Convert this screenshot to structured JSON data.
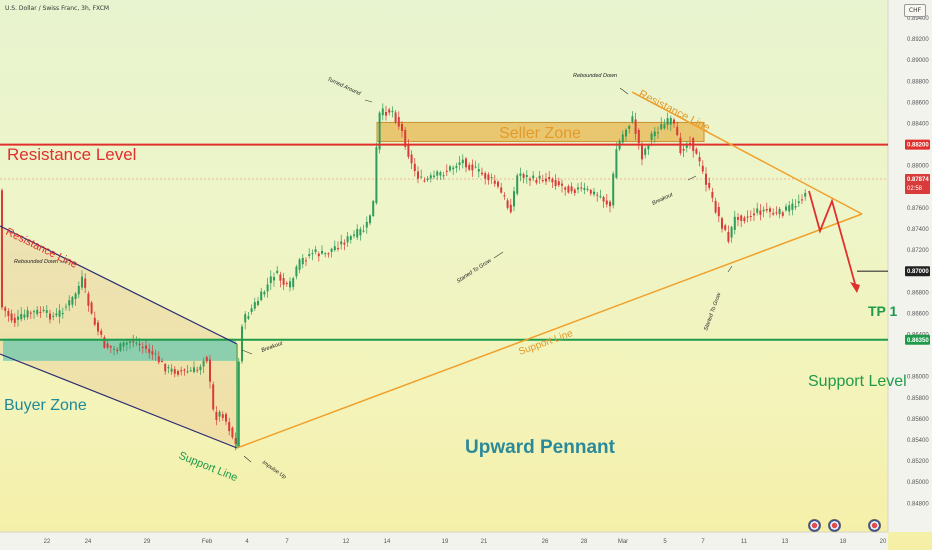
{
  "symbol_title": "U.S. Dollar / Swiss Franc, 3h, FXCM",
  "currency": "CHF",
  "colors": {
    "bull": "#2e9c5a",
    "bear": "#d93a3a",
    "resistance": "#e0302e",
    "support": "#1f9a4a",
    "pennant": "#f0a02a",
    "channel": "#2a2c70",
    "seller_zone": "#e8b44a",
    "buyer_zone": "#3cc0b0",
    "arrow": "#e0302e"
  },
  "chart_data": {
    "type": "candlestick",
    "x_ticks": [
      "22",
      "24",
      "29",
      "Feb",
      "4",
      "7",
      "12",
      "14",
      "19",
      "21",
      "26",
      "28",
      "Mar",
      "5",
      "7",
      "11",
      "13",
      "18",
      "20"
    ],
    "y_ticks": [
      "0.89400",
      "0.89200",
      "0.89000",
      "0.88800",
      "0.88600",
      "0.88400",
      "0.88000",
      "0.87800",
      "0.87600",
      "0.87400",
      "0.87200",
      "0.86800",
      "0.86600",
      "0.86400",
      "0.86000",
      "0.85800",
      "0.85600",
      "0.85400",
      "0.85200",
      "0.85000",
      "0.84800"
    ],
    "ylim": [
      0.8468,
      0.8958
    ],
    "price_labels": {
      "resistance": "0.88200",
      "current": "0.87874",
      "countdown": "02:58",
      "tp": "0.87000",
      "support": "0.86350"
    },
    "levels": {
      "resistance": 0.882,
      "support": 0.8635,
      "tp": 0.87,
      "current": 0.87874
    },
    "zones": {
      "seller": [
        0.8823,
        0.8841
      ],
      "buyer": [
        0.8615,
        0.8636
      ]
    },
    "annotations": {
      "resistance_level": "Resistance Level",
      "support_level": "Support Level",
      "seller_zone": "Seller Zone",
      "buyer_zone": "Buyer Zone",
      "upward_pennant": "Upward Pennant",
      "tp1": "TP 1",
      "resistance_line_left": "Resistance Line",
      "support_line_left": "Support Line",
      "resistance_line_right": "Resistance Line",
      "support_line_right": "Support Line",
      "rebounded_down_left": "Rebounded Down",
      "rebounded_down_right": "Rebounded Down",
      "breakout_left": "Breakout",
      "breakout_right": "Breakout",
      "impulse_up": "Impulse Up",
      "turned_around": "Turned Around",
      "started_to_grow_1": "Started To Grow",
      "started_to_grow_2": "Started To Grow"
    }
  }
}
